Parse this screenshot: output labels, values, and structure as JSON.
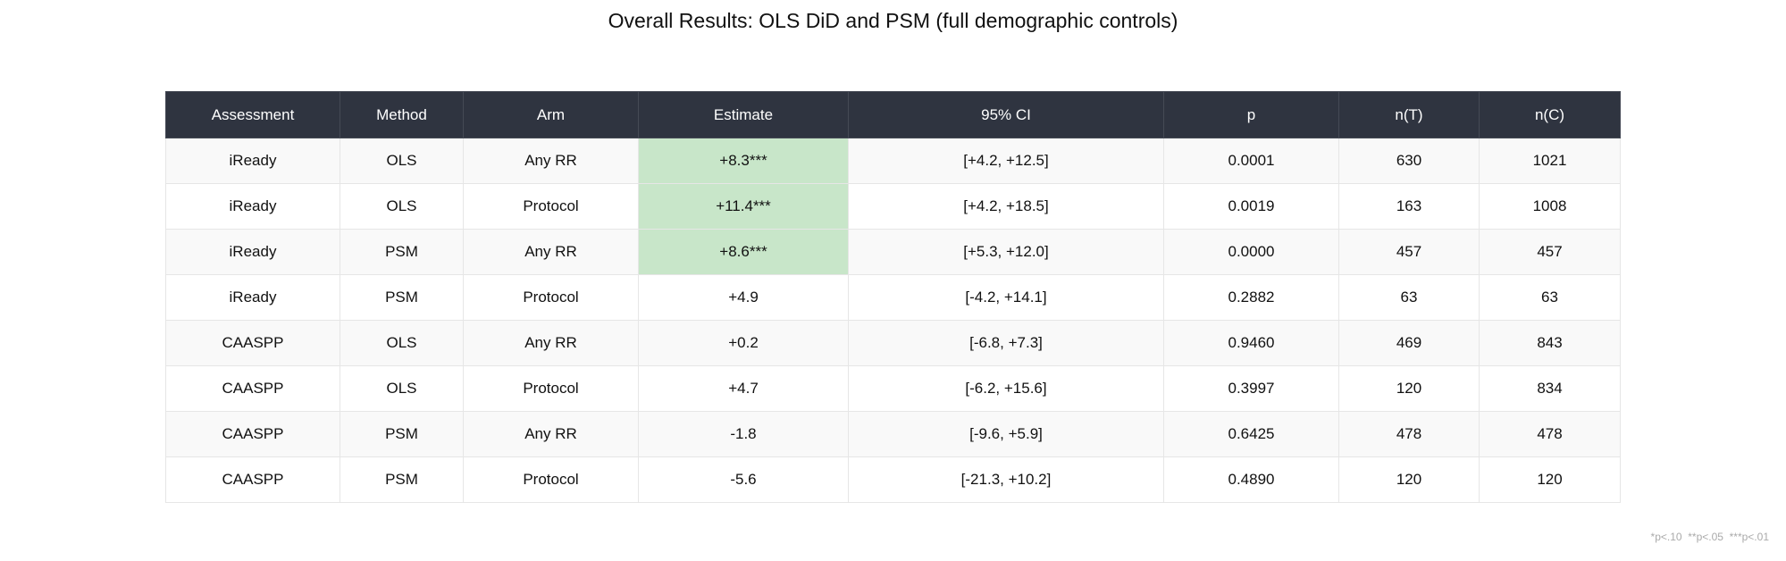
{
  "title": "Overall Results: OLS DiD and PSM (full demographic controls)",
  "table": {
    "header": [
      "Assessment",
      "Method",
      "Arm",
      "Estimate",
      "95% CI",
      "p",
      "n(T)",
      "n(C)"
    ],
    "rows": [
      [
        "iReady",
        "OLS",
        "Any RR",
        "+8.3***",
        "[+4.2, +12.5]",
        "0.0001",
        "630",
        "1021"
      ],
      [
        "iReady",
        "OLS",
        "Protocol",
        "+11.4***",
        "[+4.2, +18.5]",
        "0.0019",
        "163",
        "1008"
      ],
      [
        "iReady",
        "PSM",
        "Any RR",
        "+8.6***",
        "[+5.3, +12.0]",
        "0.0000",
        "457",
        "457"
      ],
      [
        "iReady",
        "PSM",
        "Protocol",
        "+4.9",
        "[-4.2, +14.1]",
        "0.2882",
        "63",
        "63"
      ],
      [
        "CAASPP",
        "OLS",
        "Any RR",
        "+0.2",
        "[-6.8, +7.3]",
        "0.9460",
        "469",
        "843"
      ],
      [
        "CAASPP",
        "OLS",
        "Protocol",
        "+4.7",
        "[-6.2, +15.6]",
        "0.3997",
        "120",
        "834"
      ],
      [
        "CAASPP",
        "PSM",
        "Any RR",
        "-1.8",
        "[-9.6, +5.9]",
        "0.6425",
        "478",
        "478"
      ],
      [
        "CAASPP",
        "PSM",
        "Protocol",
        "-5.6",
        "[-21.3, +10.2]",
        "0.4890",
        "120",
        "120"
      ]
    ],
    "highlight": {
      "column": 3,
      "rows": [
        0,
        1,
        2
      ],
      "color": "#c8e6c9"
    }
  },
  "footnote": "*p<.10  **p<.05  ***p<.01"
}
